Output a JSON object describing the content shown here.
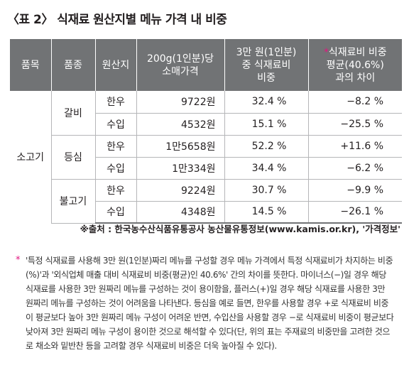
{
  "title": "〈표 2〉 식재료 원산지별 메뉴 가격 내 비중",
  "table": {
    "headers": {
      "item": "품목",
      "type": "품종",
      "origin": "원산지",
      "price_l1": "200g(1인분)당",
      "price_l2": "소매가격",
      "ratio_l1": "3만 원(1인분)",
      "ratio_l2": "중 식재료비",
      "ratio_l3": "비중",
      "diff_star": "*",
      "diff_l1": "식재료비 비중",
      "diff_l2": "평균(40.6%)",
      "diff_l3": "과의 차이"
    },
    "item": "소고기",
    "groups": [
      {
        "type": "갈비",
        "rows": [
          {
            "origin": "한우",
            "price": "9722원",
            "ratio": "32.4 %",
            "diff": "−8.2 %"
          },
          {
            "origin": "수입",
            "price": "4532원",
            "ratio": "15.1 %",
            "diff": "−25.5 %"
          }
        ]
      },
      {
        "type": "등심",
        "rows": [
          {
            "origin": "한우",
            "price": "1만5658원",
            "ratio": "52.2 %",
            "diff": "+11.6 %"
          },
          {
            "origin": "수입",
            "price": "1만334원",
            "ratio": "34.4 %",
            "diff": "−6.2 %"
          }
        ]
      },
      {
        "type": "불고기",
        "rows": [
          {
            "origin": "한우",
            "price": "9224원",
            "ratio": "30.7 %",
            "diff": "−9.9 %"
          },
          {
            "origin": "수입",
            "price": "4348원",
            "ratio": "14.5 %",
            "diff": "−26.1 %"
          }
        ]
      }
    ]
  },
  "source": "※출처 : 한국농수산식품유통공사 농산물유통정보(www.kamis.or.kr), '가격정보'",
  "note_star": "*",
  "note": "'특정 식재료를 사용해 3만 원(1인분)짜리 메뉴를 구성할 경우 메뉴 가격에서 특정 식재료비가 차지하는 비중(%)'과 '외식업체 매출 대비 식재료비 비중(평균)인 40.6%' 간의 차이를 뜻한다. 마이너스(−)일 경우 해당 식재료를 사용한 3만 원짜리 메뉴를 구성하는 것이 용이함을, 플러스(+)일 경우 해당 식재료를 사용한 3만 원짜리 메뉴를 구성하는 것이 어려움을 나타낸다. 등심을 예로 들면, 한우를 사용할 경우 +로 식재료비 비중이 평균보다 높아 3만 원짜리 메뉴 구성이 어려운 반면, 수입산을 사용할 경우 −로 식재료비 비중이 평균보다 낮아져 3만 원짜리 메뉴 구성이 용이한 것으로 해석할 수 있다(단, 위의 표는 주재료의 비중만을 고려한 것으로 채소와 밑반찬 등을 고려할 경우 식재료비 비중은 더욱 높아질 수 있다)."
}
